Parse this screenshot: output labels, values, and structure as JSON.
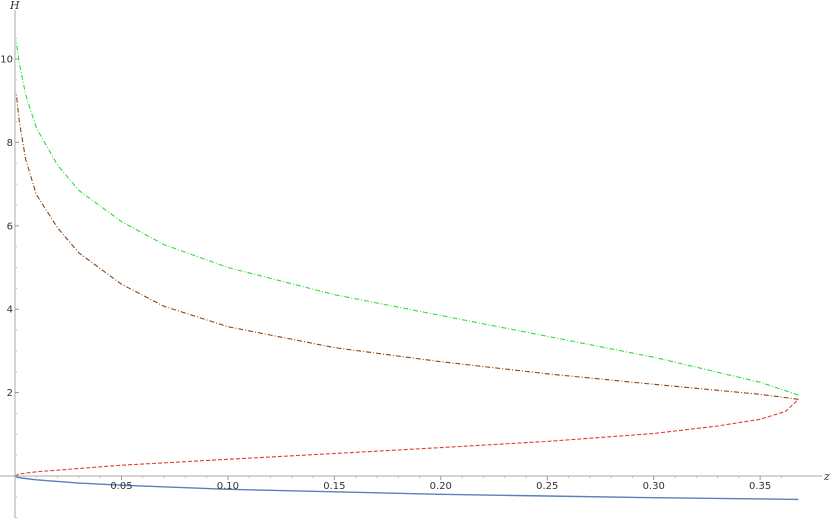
{
  "chart_data": {
    "type": "line",
    "title": "",
    "xlabel": "z",
    "ylabel": "H",
    "xlim": [
      0,
      0.37
    ],
    "ylim": [
      -1,
      10.5
    ],
    "grid": false,
    "legend": "none",
    "x_ticks": [
      "0.05",
      "0.10",
      "0.15",
      "0.20",
      "0.25",
      "0.30",
      "0.35"
    ],
    "y_ticks": [
      "2",
      "4",
      "6",
      "8",
      "10"
    ],
    "series": [
      {
        "color": "#5b7fb8",
        "style": "solid",
        "points": [
          [
            0,
            0
          ],
          [
            0.0005,
            -0.02
          ],
          [
            0.002,
            -0.04
          ],
          [
            0.005,
            -0.06
          ],
          [
            0.01,
            -0.09
          ],
          [
            0.03,
            -0.17
          ],
          [
            0.05,
            -0.22
          ],
          [
            0.1,
            -0.32
          ],
          [
            0.15,
            -0.38
          ],
          [
            0.2,
            -0.44
          ],
          [
            0.25,
            -0.48
          ],
          [
            0.3,
            -0.52
          ],
          [
            0.35,
            -0.55
          ],
          [
            0.368,
            -0.56
          ]
        ]
      },
      {
        "color": "#e03a3a",
        "style": "dashed",
        "points": [
          [
            0,
            0
          ],
          [
            0.002,
            0.05
          ],
          [
            0.01,
            0.1
          ],
          [
            0.05,
            0.26
          ],
          [
            0.1,
            0.4
          ],
          [
            0.15,
            0.54
          ],
          [
            0.2,
            0.68
          ],
          [
            0.25,
            0.83
          ],
          [
            0.3,
            1.02
          ],
          [
            0.33,
            1.2
          ],
          [
            0.35,
            1.36
          ],
          [
            0.362,
            1.55
          ],
          [
            0.368,
            1.84
          ]
        ]
      },
      {
        "color": "#8b4513",
        "style": "dash-dot",
        "points": [
          [
            0.368,
            1.84
          ],
          [
            0.35,
            1.96
          ],
          [
            0.3,
            2.2
          ],
          [
            0.25,
            2.45
          ],
          [
            0.2,
            2.74
          ],
          [
            0.15,
            3.08
          ],
          [
            0.1,
            3.58
          ],
          [
            0.07,
            4.07
          ],
          [
            0.05,
            4.6
          ],
          [
            0.03,
            5.35
          ],
          [
            0.02,
            5.95
          ],
          [
            0.01,
            6.75
          ],
          [
            0.005,
            7.6
          ],
          [
            0.002,
            8.5
          ],
          [
            0.0005,
            9.2
          ]
        ]
      },
      {
        "color": "#33dd33",
        "style": "dash-dot",
        "points": [
          [
            0.368,
            1.94
          ],
          [
            0.35,
            2.25
          ],
          [
            0.3,
            2.85
          ],
          [
            0.25,
            3.35
          ],
          [
            0.2,
            3.85
          ],
          [
            0.15,
            4.35
          ],
          [
            0.1,
            5.0
          ],
          [
            0.07,
            5.55
          ],
          [
            0.05,
            6.1
          ],
          [
            0.03,
            6.85
          ],
          [
            0.02,
            7.45
          ],
          [
            0.01,
            8.35
          ],
          [
            0.005,
            9.15
          ],
          [
            0.002,
            9.9
          ],
          [
            0.0005,
            10.45
          ]
        ]
      }
    ]
  }
}
